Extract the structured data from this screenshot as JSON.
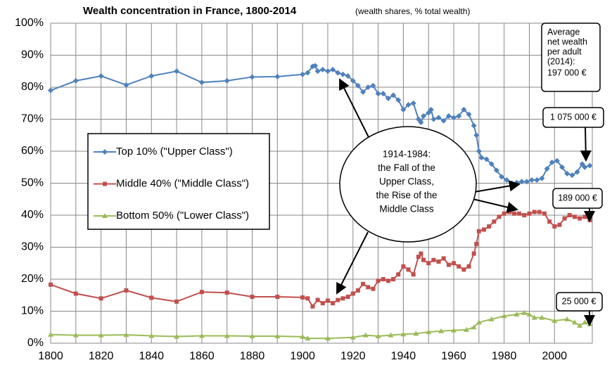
{
  "chart_data": {
    "type": "line",
    "title": "Wealth concentration in France, 1800-2014",
    "subtitle": "(wealth shares, % total wealth)",
    "xlim": [
      1800,
      2015
    ],
    "xticks": [
      1800,
      1820,
      1840,
      1860,
      1880,
      1900,
      1920,
      1940,
      1960,
      1980,
      2000
    ],
    "ylim": [
      0,
      100
    ],
    "yticks": [
      {
        "value": 0,
        "label": "0%"
      },
      {
        "value": 10,
        "label": "10%"
      },
      {
        "value": 20,
        "label": "20%"
      },
      {
        "value": 30,
        "label": "30%"
      },
      {
        "value": 40,
        "label": "40%"
      },
      {
        "value": 50,
        "label": "50%"
      },
      {
        "value": 60,
        "label": "60%"
      },
      {
        "value": 70,
        "label": "70%"
      },
      {
        "value": 80,
        "label": "80%"
      },
      {
        "value": 90,
        "label": "90%"
      },
      {
        "value": 100,
        "label": "100%"
      }
    ],
    "grid": true,
    "series": [
      {
        "name": "Top 10% (\"Upper Class\")",
        "color": "#4f81bd",
        "marker": "diamond",
        "x": [
          1800,
          1810,
          1820,
          1830,
          1840,
          1850,
          1860,
          1870,
          1880,
          1890,
          1900,
          1902,
          1904,
          1905,
          1906,
          1908,
          1910,
          1912,
          1914,
          1916,
          1918,
          1920,
          1922,
          1924,
          1926,
          1928,
          1930,
          1932,
          1934,
          1936,
          1938,
          1940,
          1942,
          1944,
          1946,
          1947,
          1948,
          1950,
          1951,
          1952,
          1954,
          1956,
          1958,
          1960,
          1962,
          1964,
          1966,
          1968,
          1969,
          1970,
          1971,
          1973,
          1975,
          1977,
          1979,
          1981,
          1983,
          1985,
          1987,
          1989,
          1991,
          1993,
          1995,
          1997,
          1999,
          2001,
          2003,
          2005,
          2007,
          2009,
          2011,
          2012,
          2014
        ],
        "values": [
          79,
          82,
          83.5,
          80.7,
          83.5,
          85,
          81.5,
          82,
          83.2,
          83.3,
          84,
          84.5,
          86.5,
          86.7,
          85,
          85.5,
          85,
          85.5,
          84.5,
          84,
          83.5,
          82,
          80.5,
          78.5,
          80,
          80.5,
          78,
          78,
          76.5,
          77.5,
          76,
          73,
          74.5,
          75,
          70,
          69,
          71,
          72,
          73,
          70,
          70.5,
          69.5,
          71,
          70.5,
          71,
          73,
          71.5,
          68,
          65,
          60,
          58,
          57.5,
          56,
          54,
          52,
          51,
          50,
          50.2,
          50.5,
          50.5,
          51,
          51,
          51.5,
          54.5,
          56.5,
          57,
          55,
          53,
          52.5,
          53.5,
          56,
          55,
          55.5
        ]
      },
      {
        "name": "Middle 40% (\"Middle Class\")",
        "color": "#c0504d",
        "marker": "square",
        "x": [
          1800,
          1810,
          1820,
          1830,
          1840,
          1850,
          1860,
          1870,
          1880,
          1890,
          1900,
          1902,
          1904,
          1906,
          1908,
          1910,
          1912,
          1914,
          1916,
          1918,
          1920,
          1922,
          1924,
          1926,
          1928,
          1930,
          1932,
          1934,
          1936,
          1938,
          1940,
          1942,
          1944,
          1946,
          1947,
          1948,
          1950,
          1952,
          1954,
          1956,
          1958,
          1960,
          1962,
          1964,
          1966,
          1968,
          1969,
          1970,
          1972,
          1974,
          1976,
          1978,
          1980,
          1982,
          1984,
          1986,
          1988,
          1990,
          1992,
          1994,
          1996,
          1998,
          2000,
          2002,
          2004,
          2006,
          2008,
          2010,
          2012,
          2014
        ],
        "values": [
          18.3,
          15.5,
          14,
          16.5,
          14.2,
          13,
          16,
          15.8,
          14.5,
          14.5,
          14.3,
          14,
          11.5,
          13.5,
          12.5,
          13.3,
          12.5,
          13.5,
          14,
          14.5,
          15.5,
          16.5,
          18.5,
          17.5,
          17,
          19.5,
          20,
          19.5,
          20,
          21.5,
          24,
          23,
          21.5,
          27,
          28,
          26,
          25,
          26,
          25.5,
          26.5,
          24.5,
          25,
          24,
          23,
          24,
          28,
          31,
          35,
          35.5,
          36.5,
          38,
          39.5,
          40.5,
          41,
          40.5,
          40.5,
          40,
          40.5,
          41,
          41,
          40.5,
          38,
          36.5,
          37,
          39,
          40,
          39.5,
          39,
          39.5,
          38.5
        ]
      },
      {
        "name": "Bottom 50% (\"Lower Class\")",
        "color": "#9bbb59",
        "marker": "triangle",
        "x": [
          1800,
          1810,
          1820,
          1830,
          1840,
          1850,
          1860,
          1870,
          1880,
          1890,
          1900,
          1902,
          1910,
          1920,
          1925,
          1930,
          1935,
          1940,
          1945,
          1950,
          1955,
          1960,
          1965,
          1968,
          1970,
          1975,
          1980,
          1985,
          1988,
          1990,
          1992,
          1995,
          2000,
          2005,
          2008,
          2010,
          2012,
          2014
        ],
        "values": [
          2.7,
          2.5,
          2.5,
          2.6,
          2.3,
          2.1,
          2.3,
          2.3,
          2.2,
          2.2,
          2,
          1.5,
          1.5,
          1.8,
          2.5,
          2.2,
          2.5,
          2.8,
          3,
          3.5,
          3.8,
          4,
          4.2,
          5,
          6.5,
          7.5,
          8.5,
          9,
          9.5,
          9,
          8,
          8,
          7,
          7.5,
          6.5,
          5.5,
          6.5,
          6
        ]
      }
    ],
    "annotations": [
      {
        "lines": [
          "Average",
          "net wealth",
          "per adult",
          "(2014):",
          "197 000 €"
        ]
      },
      {
        "lines": [
          "1 075 000 €"
        ]
      },
      {
        "lines": [
          "189 000 €"
        ]
      },
      {
        "lines": [
          "25 000 €"
        ]
      },
      {
        "lines": [
          "1914-1984:",
          "the Fall of the",
          "Upper Class,",
          "the Rise of the",
          "Middle Class"
        ]
      }
    ]
  }
}
